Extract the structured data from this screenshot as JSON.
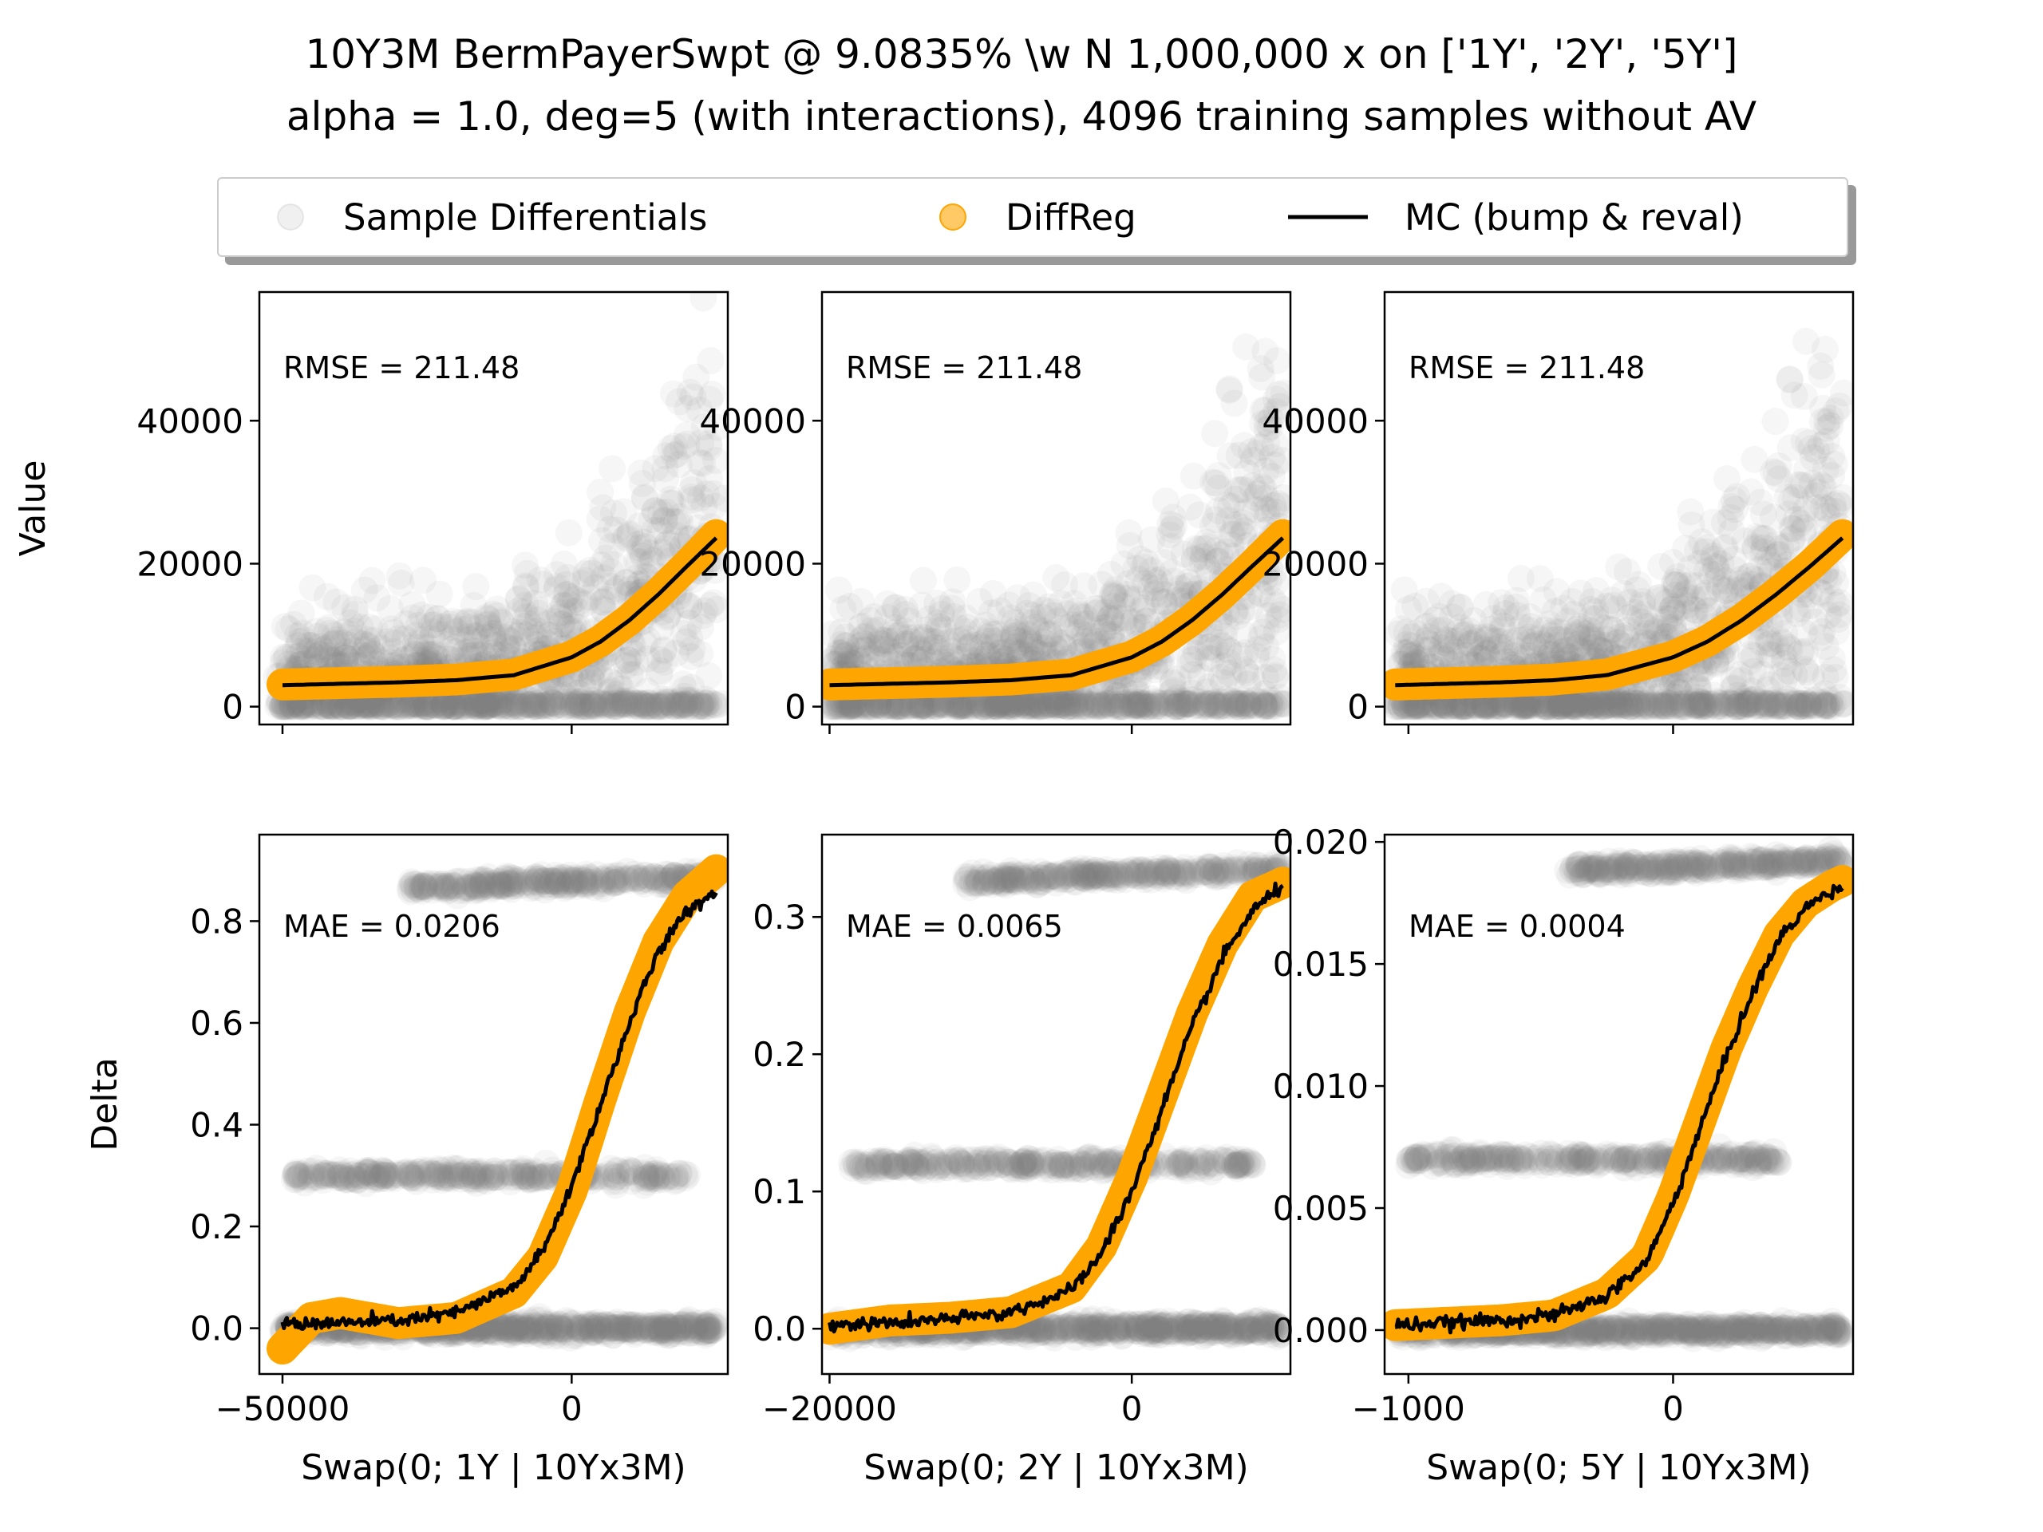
{
  "title": {
    "line1": "10Y3M BermPayerSwpt @ 9.0835% \\w N 1,000,000 x on ['1Y', '2Y', '5Y']",
    "line2": "alpha = 1.0, deg=5 (with interactions), 4096 training samples without AV"
  },
  "legend": {
    "placement": "top-center",
    "entries": [
      {
        "label": "Sample Differentials",
        "marker": "circle",
        "color": "#808080"
      },
      {
        "label": "DiffReg",
        "marker": "circle",
        "color": "#FFA500"
      },
      {
        "label": "MC (bump & reval)",
        "marker": "line",
        "color": "#000000"
      }
    ]
  },
  "colors": {
    "samples": "#808080",
    "diffreg": "#FFA500",
    "mc": "#000000"
  },
  "chart_data": [
    {
      "type": "scatter",
      "row": "value",
      "col": 0,
      "ylabel": "Value",
      "xlabel": "",
      "xlim": [
        -54000,
        27000
      ],
      "ylim": [
        -2500,
        58000
      ],
      "xticks": [
        -50000,
        0
      ],
      "yticks": [
        0,
        20000,
        40000
      ],
      "ytick_labels": [
        "0",
        "20000",
        "40000"
      ],
      "annotation": "RMSE = 211.48",
      "diffreg_x": [
        -50000,
        -40000,
        -30000,
        -20000,
        -10000,
        0,
        5000,
        10000,
        15000,
        20000,
        25000
      ],
      "diffreg_y": [
        3100,
        3300,
        3500,
        3800,
        4500,
        7000,
        9200,
        12200,
        15800,
        19800,
        24000
      ],
      "mc_x": [
        -50000,
        -40000,
        -30000,
        -20000,
        -10000,
        0,
        5000,
        10000,
        15000,
        20000,
        25000
      ],
      "mc_y": [
        3000,
        3200,
        3400,
        3700,
        4400,
        6900,
        9100,
        12100,
        15700,
        19700,
        23600
      ]
    },
    {
      "type": "scatter",
      "row": "value",
      "col": 1,
      "ylabel": "",
      "xlabel": "",
      "xlim": [
        -20500,
        10500
      ],
      "ylim": [
        -2500,
        58000
      ],
      "xticks": [
        -20000,
        0
      ],
      "yticks": [
        0,
        20000,
        40000
      ],
      "ytick_labels": [
        "0",
        "20000",
        "40000"
      ],
      "annotation": "RMSE = 211.48",
      "diffreg_x": [
        -20000,
        -16000,
        -12000,
        -8000,
        -4000,
        0,
        2000,
        4000,
        6000,
        8000,
        10000
      ],
      "diffreg_y": [
        3100,
        3300,
        3500,
        3800,
        4500,
        7000,
        9200,
        12200,
        15800,
        19800,
        24000
      ],
      "mc_x": [
        -20000,
        -16000,
        -12000,
        -8000,
        -4000,
        0,
        2000,
        4000,
        6000,
        8000,
        10000
      ],
      "mc_y": [
        3000,
        3200,
        3400,
        3700,
        4400,
        6900,
        9100,
        12100,
        15700,
        19700,
        23600
      ]
    },
    {
      "type": "scatter",
      "row": "value",
      "col": 2,
      "ylabel": "",
      "xlabel": "",
      "xlim": [
        -1090,
        680
      ],
      "ylim": [
        -2500,
        58000
      ],
      "xticks": [
        -1000,
        0
      ],
      "yticks": [
        0,
        20000,
        40000
      ],
      "ytick_labels": [
        "0",
        "20000",
        "40000"
      ],
      "annotation": "RMSE = 211.48",
      "diffreg_x": [
        -1050,
        -850,
        -650,
        -450,
        -250,
        0,
        130,
        260,
        390,
        520,
        640
      ],
      "diffreg_y": [
        3100,
        3300,
        3500,
        3800,
        4500,
        7000,
        9200,
        12200,
        15800,
        19800,
        24000
      ],
      "mc_x": [
        -1050,
        -850,
        -650,
        -450,
        -250,
        0,
        130,
        260,
        390,
        520,
        640
      ],
      "mc_y": [
        3000,
        3200,
        3400,
        3700,
        4400,
        6900,
        9100,
        12100,
        15700,
        19700,
        23600
      ]
    },
    {
      "type": "scatter",
      "row": "delta",
      "col": 0,
      "ylabel": "Delta",
      "xlabel": "Swap(0; 1Y | 10Yx3M)",
      "xlim": [
        -54000,
        27000
      ],
      "ylim": [
        -0.09,
        0.97
      ],
      "xticks": [
        -50000,
        0
      ],
      "yticks": [
        0.0,
        0.2,
        0.4,
        0.6,
        0.8
      ],
      "xtick_labels": [
        "−50000",
        "0"
      ],
      "ytick_labels": [
        "0.0",
        "0.2",
        "0.4",
        "0.6",
        "0.8"
      ],
      "annotation": "MAE = 0.0206",
      "sample_bands": [
        {
          "y": 0.0,
          "x_range": [
            -50000,
            25000
          ]
        },
        {
          "y": 0.3,
          "x_range": [
            -48000,
            20000
          ]
        },
        {
          "y": 0.875,
          "x_range": [
            -28000,
            25000
          ]
        }
      ],
      "diffreg_x": [
        -50000,
        -45000,
        -40000,
        -35000,
        -30000,
        -20000,
        -10000,
        -5000,
        0,
        5000,
        10000,
        15000,
        20000,
        25000
      ],
      "diffreg_y": [
        -0.04,
        0.02,
        0.03,
        0.02,
        0.01,
        0.02,
        0.07,
        0.14,
        0.27,
        0.45,
        0.62,
        0.76,
        0.85,
        0.9
      ],
      "mc_x": [
        -50000,
        -40000,
        -30000,
        -20000,
        -10000,
        -5000,
        0,
        5000,
        10000,
        15000,
        20000,
        25000
      ],
      "mc_y": [
        0.01,
        0.01,
        0.015,
        0.03,
        0.08,
        0.15,
        0.28,
        0.44,
        0.6,
        0.74,
        0.82,
        0.86
      ]
    },
    {
      "type": "scatter",
      "row": "delta",
      "col": 1,
      "ylabel": "",
      "xlabel": "Swap(0; 2Y | 10Yx3M)",
      "xlim": [
        -20500,
        10500
      ],
      "ylim": [
        -0.033,
        0.36
      ],
      "xticks": [
        -20000,
        0
      ],
      "yticks": [
        0.0,
        0.1,
        0.2,
        0.3
      ],
      "xtick_labels": [
        "−20000",
        "0"
      ],
      "ytick_labels": [
        "0.0",
        "0.1",
        "0.2",
        "0.3"
      ],
      "annotation": "MAE = 0.0065",
      "sample_bands": [
        {
          "y": 0.0,
          "x_range": [
            -20000,
            10000
          ]
        },
        {
          "y": 0.12,
          "x_range": [
            -19000,
            8000
          ]
        },
        {
          "y": 0.33,
          "x_range": [
            -11000,
            10000
          ]
        }
      ],
      "diffreg_x": [
        -20000,
        -16000,
        -12000,
        -8000,
        -4000,
        -2000,
        0,
        2000,
        4000,
        6000,
        8000,
        10000
      ],
      "diffreg_y": [
        0.0,
        0.006,
        0.008,
        0.012,
        0.03,
        0.06,
        0.11,
        0.17,
        0.23,
        0.28,
        0.315,
        0.325
      ],
      "mc_x": [
        -20000,
        -16000,
        -12000,
        -8000,
        -4000,
        -2000,
        0,
        2000,
        4000,
        6000,
        8000,
        10000
      ],
      "mc_y": [
        0.003,
        0.004,
        0.007,
        0.012,
        0.028,
        0.055,
        0.1,
        0.16,
        0.22,
        0.27,
        0.305,
        0.322
      ]
    },
    {
      "type": "scatter",
      "row": "delta",
      "col": 2,
      "ylabel": "",
      "xlabel": "Swap(0; 5Y | 10Yx3M)",
      "xlim": [
        -1090,
        680
      ],
      "ylim": [
        -0.0018,
        0.0203
      ],
      "xticks": [
        -1000,
        0
      ],
      "yticks": [
        0.0,
        0.005,
        0.01,
        0.015,
        0.02
      ],
      "xtick_labels": [
        "−1000",
        "0"
      ],
      "ytick_labels": [
        "0.000",
        "0.005",
        "0.010",
        "0.015",
        "0.020"
      ],
      "annotation": "MAE = 0.0004",
      "sample_bands": [
        {
          "y": 0.0,
          "x_range": [
            -1050,
            640
          ]
        },
        {
          "y": 0.007,
          "x_range": [
            -1000,
            400
          ]
        },
        {
          "y": 0.019,
          "x_range": [
            -400,
            640
          ]
        }
      ],
      "diffreg_x": [
        -1050,
        -850,
        -650,
        -450,
        -250,
        -100,
        0,
        100,
        200,
        300,
        400,
        500,
        600,
        640
      ],
      "diffreg_y": [
        0.0002,
        0.0003,
        0.0004,
        0.0006,
        0.0015,
        0.003,
        0.0055,
        0.0085,
        0.0115,
        0.014,
        0.0162,
        0.0175,
        0.0182,
        0.0184
      ],
      "mc_x": [
        -1050,
        -850,
        -650,
        -450,
        -250,
        -100,
        0,
        100,
        200,
        300,
        400,
        500,
        600,
        640
      ],
      "mc_y": [
        0.0002,
        0.0003,
        0.0004,
        0.0006,
        0.0014,
        0.0028,
        0.0052,
        0.0082,
        0.0112,
        0.0138,
        0.016,
        0.0173,
        0.018,
        0.0182
      ]
    }
  ]
}
